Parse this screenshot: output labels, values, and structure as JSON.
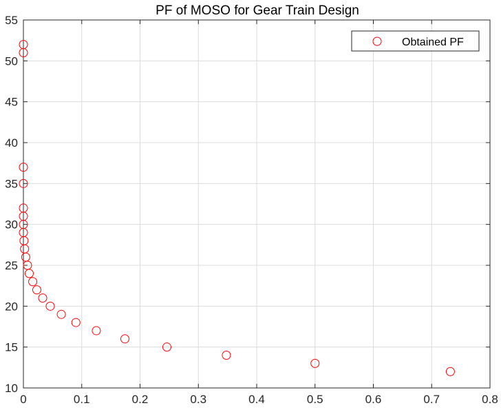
{
  "chart_data": {
    "type": "scatter",
    "title": "PF of MOSO for Gear Train Design",
    "xlabel": "",
    "ylabel": "",
    "xlim": [
      0,
      0.8
    ],
    "ylim": [
      10,
      55
    ],
    "xticks": [
      "0",
      "0.1",
      "0.2",
      "0.3",
      "0.4",
      "0.5",
      "0.6",
      "0.7",
      "0.8"
    ],
    "yticks": [
      "10",
      "15",
      "20",
      "25",
      "30",
      "35",
      "40",
      "45",
      "50",
      "55"
    ],
    "grid": true,
    "legend": {
      "position": "top-right",
      "entries": [
        "Obtained PF"
      ]
    },
    "series": [
      {
        "name": "Obtained PF",
        "marker": "circle-open",
        "color": "#ff0000",
        "points": [
          [
            0.0,
            52
          ],
          [
            0.0,
            51
          ],
          [
            0.0,
            37
          ],
          [
            0.0,
            35
          ],
          [
            0.0,
            32
          ],
          [
            0.0,
            31
          ],
          [
            0.0,
            30
          ],
          [
            0.0,
            29
          ],
          [
            0.001,
            28
          ],
          [
            0.002,
            27
          ],
          [
            0.004,
            26
          ],
          [
            0.007,
            25
          ],
          [
            0.01,
            24
          ],
          [
            0.016,
            23
          ],
          [
            0.023,
            22
          ],
          [
            0.033,
            21
          ],
          [
            0.046,
            20
          ],
          [
            0.065,
            19
          ],
          [
            0.09,
            18
          ],
          [
            0.125,
            17
          ],
          [
            0.174,
            16
          ],
          [
            0.246,
            15
          ],
          [
            0.348,
            14
          ],
          [
            0.5,
            13
          ],
          [
            0.732,
            12
          ]
        ]
      }
    ]
  },
  "colors": {
    "marker": "#ff0000",
    "grid": "#dcdcdc",
    "axes": "#262626"
  }
}
